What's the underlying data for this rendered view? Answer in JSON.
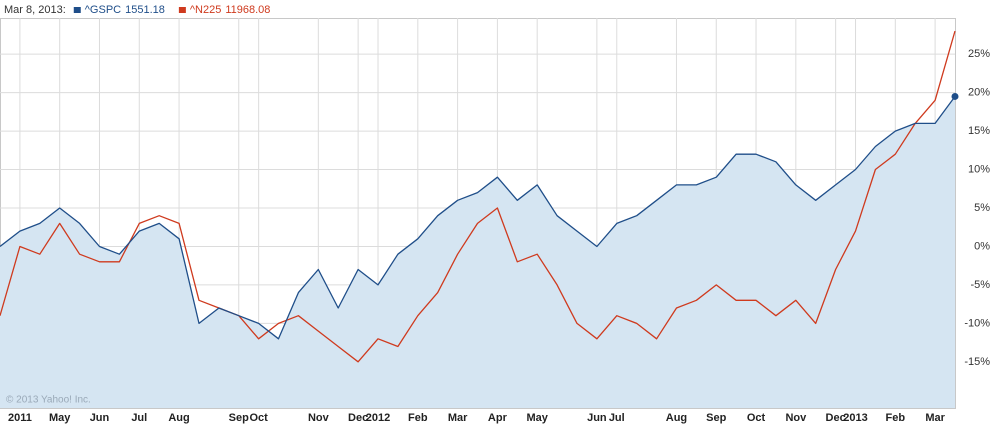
{
  "chart_data": {
    "type": "line",
    "date_label": "Mar 8, 2013:",
    "watermark": "© 2013 Yahoo! Inc.",
    "categories": [
      null,
      "2011",
      null,
      "May",
      null,
      "Jun",
      null,
      "Jul",
      null,
      "Aug",
      null,
      null,
      "Sep",
      "Oct",
      null,
      null,
      "Nov",
      null,
      "Dec",
      "2012",
      null,
      "Feb",
      null,
      "Mar",
      null,
      "Apr",
      null,
      "May",
      null,
      null,
      "Jun",
      "Jul",
      null,
      null,
      "Aug",
      null,
      "Sep",
      null,
      "Oct",
      null,
      "Nov",
      null,
      "Dec",
      "2013",
      null,
      "Feb",
      null,
      "Mar",
      null
    ],
    "series": [
      {
        "name": "^GSPC",
        "last": "1551.18",
        "color": "#1f4e89",
        "fill": "#d5e5f2",
        "values": [
          0,
          2,
          3,
          5,
          3,
          0,
          -1,
          2,
          3,
          1,
          -10,
          -8,
          -9,
          -10,
          -12,
          -6,
          -3,
          -8,
          -3,
          -5,
          -1,
          1,
          4,
          6,
          7,
          9,
          6,
          8,
          4,
          2,
          0,
          3,
          4,
          6,
          8,
          8,
          9,
          12,
          12,
          11,
          8,
          6,
          8,
          10,
          13,
          15,
          16,
          16,
          19.5
        ]
      },
      {
        "name": "^N225",
        "last": "11968.08",
        "color": "#cf3a1e",
        "values": [
          -9,
          0,
          -1,
          3,
          -1,
          -2,
          -2,
          3,
          4,
          3,
          -7,
          -8,
          -9,
          -12,
          -10,
          -9,
          -11,
          -13,
          -15,
          -12,
          -13,
          -9,
          -6,
          -1,
          3,
          5,
          -2,
          -1,
          -5,
          -10,
          -12,
          -9,
          -10,
          -12,
          -8,
          -7,
          -5,
          -7,
          -7,
          -9,
          -7,
          -10,
          -3,
          2,
          10,
          12,
          16,
          19,
          28
        ]
      }
    ],
    "ylim": [
      -21,
      29.7
    ],
    "yticks": [
      {
        "value": -15,
        "label": "-15%"
      },
      {
        "value": -10,
        "label": "-10%"
      },
      {
        "value": -5,
        "label": "-5%"
      },
      {
        "value": 0,
        "label": "0%"
      },
      {
        "value": 5,
        "label": "5%"
      },
      {
        "value": 10,
        "label": "10%"
      },
      {
        "value": 15,
        "label": "15%"
      },
      {
        "value": 20,
        "label": "20%"
      },
      {
        "value": 25,
        "label": "25%"
      }
    ],
    "grid": true
  }
}
